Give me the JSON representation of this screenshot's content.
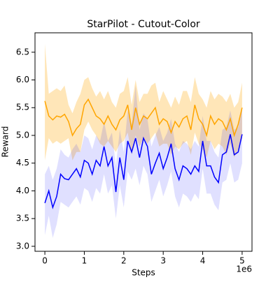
{
  "chart_data": {
    "type": "line",
    "title": "StarPilot - Cutout-Color",
    "xlabel": "Steps",
    "ylabel": "Reward",
    "x_offset_label": "1e6",
    "x": [
      0,
      100000,
      200000,
      300000,
      400000,
      500000,
      600000,
      700000,
      800000,
      900000,
      1000000,
      1100000,
      1200000,
      1300000,
      1400000,
      1500000,
      1600000,
      1700000,
      1800000,
      1900000,
      2000000,
      2100000,
      2200000,
      2300000,
      2400000,
      2500000,
      2600000,
      2700000,
      2800000,
      2900000,
      3000000,
      3100000,
      3200000,
      3300000,
      3400000,
      3500000,
      3600000,
      3700000,
      3800000,
      3900000,
      4000000,
      4100000,
      4200000,
      4300000,
      4400000,
      4500000,
      4600000,
      4700000,
      4800000,
      4900000,
      5000000
    ],
    "series": [
      {
        "color": "#ffa500",
        "values": [
          5.62,
          5.35,
          5.28,
          5.35,
          5.33,
          5.38,
          5.25,
          5.0,
          5.12,
          5.2,
          5.55,
          5.65,
          5.5,
          5.35,
          5.3,
          5.2,
          5.35,
          5.2,
          5.1,
          5.28,
          5.35,
          5.55,
          5.1,
          5.5,
          5.2,
          5.35,
          5.3,
          5.4,
          5.5,
          5.2,
          5.3,
          5.25,
          5.05,
          5.25,
          5.15,
          5.3,
          5.35,
          5.1,
          5.55,
          5.3,
          5.2,
          5.0,
          5.35,
          5.2,
          5.3,
          5.25,
          5.1,
          5.3,
          5.0,
          5.2,
          5.5
        ],
        "upper": [
          6.65,
          5.75,
          5.8,
          5.85,
          5.8,
          5.9,
          5.55,
          5.4,
          5.6,
          5.75,
          6.0,
          6.05,
          5.85,
          5.7,
          5.8,
          5.65,
          5.8,
          5.6,
          5.5,
          5.75,
          5.8,
          6.05,
          5.55,
          6.0,
          5.6,
          5.75,
          5.75,
          5.9,
          5.95,
          5.6,
          5.8,
          5.65,
          5.5,
          5.7,
          5.55,
          5.8,
          5.8,
          5.6,
          6.05,
          5.75,
          5.65,
          5.5,
          5.8,
          5.65,
          5.75,
          5.7,
          5.6,
          5.75,
          5.5,
          5.6,
          5.95
        ],
        "lower": [
          4.55,
          4.95,
          4.85,
          4.9,
          4.85,
          4.9,
          4.95,
          4.55,
          4.7,
          4.7,
          5.1,
          5.25,
          5.1,
          5.0,
          4.85,
          4.8,
          4.9,
          4.8,
          4.7,
          4.85,
          4.9,
          5.05,
          4.65,
          5.0,
          4.8,
          4.95,
          4.85,
          4.95,
          5.05,
          4.8,
          4.85,
          4.85,
          4.65,
          4.8,
          4.75,
          4.85,
          4.9,
          4.65,
          5.05,
          4.85,
          4.75,
          4.6,
          4.9,
          4.75,
          4.85,
          4.8,
          4.65,
          4.85,
          4.6,
          4.75,
          4.95
        ]
      },
      {
        "color": "#0000ff",
        "values": [
          3.78,
          4.0,
          3.7,
          3.9,
          4.3,
          4.22,
          4.2,
          4.3,
          4.4,
          4.25,
          4.55,
          4.5,
          4.3,
          4.55,
          4.45,
          4.8,
          4.45,
          4.6,
          3.98,
          4.6,
          4.2,
          4.9,
          4.7,
          4.95,
          4.6,
          4.95,
          4.8,
          4.3,
          4.5,
          4.68,
          4.4,
          4.6,
          4.85,
          4.4,
          4.2,
          4.45,
          4.4,
          4.3,
          4.45,
          4.35,
          4.9,
          4.45,
          4.45,
          4.25,
          4.15,
          4.65,
          4.7,
          5.02,
          4.65,
          4.7,
          5.02
        ],
        "upper": [
          4.3,
          4.45,
          4.2,
          4.4,
          4.75,
          4.65,
          4.6,
          4.75,
          4.85,
          4.7,
          5.0,
          4.95,
          4.75,
          5.0,
          4.9,
          5.25,
          4.9,
          5.05,
          4.45,
          5.1,
          4.7,
          5.45,
          5.2,
          5.9,
          5.1,
          5.4,
          5.3,
          4.8,
          5.0,
          5.15,
          4.9,
          5.05,
          5.3,
          4.85,
          4.7,
          4.9,
          4.85,
          4.75,
          4.9,
          4.8,
          5.35,
          4.9,
          4.9,
          4.7,
          4.6,
          5.1,
          5.15,
          5.45,
          5.1,
          5.15,
          5.5
        ],
        "lower": [
          3.2,
          3.55,
          3.15,
          3.4,
          3.8,
          3.75,
          3.7,
          3.8,
          3.9,
          3.75,
          4.05,
          4.0,
          3.8,
          4.05,
          3.95,
          4.3,
          3.95,
          4.1,
          3.5,
          4.1,
          3.7,
          4.35,
          4.2,
          4.4,
          4.1,
          4.45,
          4.3,
          3.8,
          4.0,
          4.2,
          3.9,
          4.1,
          4.35,
          3.9,
          3.7,
          3.95,
          3.9,
          3.8,
          3.95,
          3.85,
          4.4,
          3.95,
          3.95,
          3.75,
          3.65,
          4.15,
          4.2,
          4.5,
          4.15,
          4.2,
          4.5
        ]
      }
    ],
    "xlim": [
      -250000,
      5250000
    ],
    "xticks": [
      0,
      {
        "value": 1000000,
        "label": "1"
      },
      {
        "value": 2000000,
        "label": "2"
      },
      {
        "value": 3000000,
        "label": "3"
      },
      {
        "value": 4000000,
        "label": "4"
      },
      {
        "value": 5000000,
        "label": "5"
      }
    ],
    "ylim": [
      2.91,
      6.85
    ],
    "yticks": [
      {
        "value": 3,
        "label": "3.0"
      },
      3.5,
      {
        "value": 4,
        "label": "4.0"
      },
      4.5,
      {
        "value": 5,
        "label": "5.0"
      },
      5.5,
      {
        "value": 6,
        "label": "6.0"
      },
      6.5
    ],
    "grid": false
  }
}
